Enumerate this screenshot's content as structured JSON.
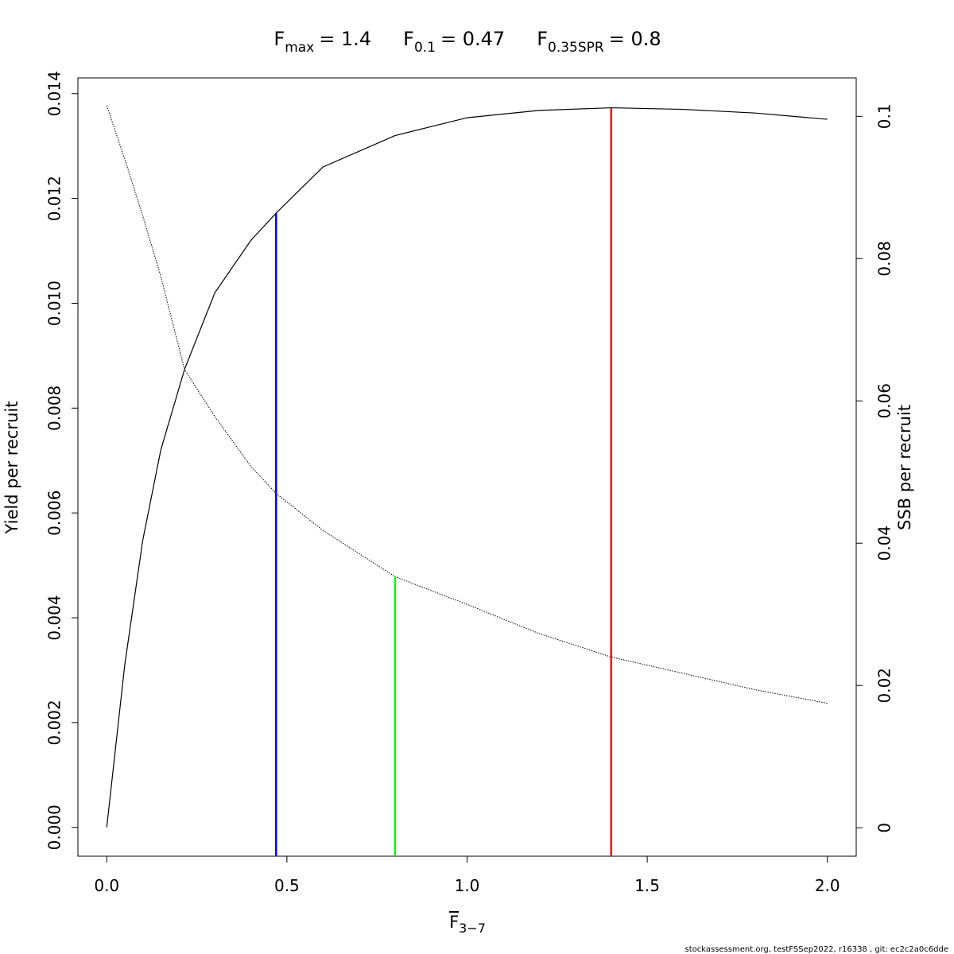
{
  "chart_data": {
    "type": "line",
    "title": [
      {
        "main": "F",
        "sub": "max",
        "rest": "= 1.4"
      },
      {
        "main": "F",
        "sub": "0.1",
        "rest": "= 0.47"
      },
      {
        "main": "F",
        "sub": "0.35SPR",
        "rest": "= 0.8"
      }
    ],
    "xlabel": {
      "main": "F",
      "sub": "3−7"
    },
    "ylabel": "Yield per recruit",
    "y2label": "SSB per recruit",
    "footer": "stockassessment.org, testFSSep2022, r16338 , git: ec2c2a0c6dde",
    "x": [
      0,
      0.05,
      0.1,
      0.15,
      0.216,
      0.3,
      0.4,
      0.47,
      0.6,
      0.8,
      1.0,
      1.2,
      1.4,
      1.6,
      1.8,
      2.0
    ],
    "series": [
      {
        "name": "Yield per recruit",
        "color": "#000000",
        "dash": "solid",
        "axis": "y",
        "values": [
          0,
          0.0031,
          0.00548,
          0.0072,
          0.00874,
          0.0102,
          0.0112,
          0.01172,
          0.0126,
          0.0132,
          0.01354,
          0.01368,
          0.01373,
          0.0137,
          0.01363,
          0.01351
        ]
      },
      {
        "name": "SSB per recruit",
        "color": "#000000",
        "dash": "dotted",
        "axis": "y2",
        "values": [
          0.1015,
          0.094,
          0.086,
          0.0775,
          0.0644,
          0.0578,
          0.0508,
          0.047,
          0.0418,
          0.0353,
          0.0314,
          0.0273,
          0.024,
          0.0217,
          0.0194,
          0.0175
        ]
      }
    ],
    "reference_lines": [
      {
        "x": 0.47,
        "y": 0.01172,
        "axis": "y",
        "color": "#0000ff"
      },
      {
        "x": 0.8,
        "y": 0.0353,
        "axis": "y2",
        "color": "#00ff00"
      },
      {
        "x": 1.4,
        "y": 0.01373,
        "axis": "y",
        "color": "#ff0000"
      }
    ],
    "xlim": [
      -0.08,
      2.08
    ],
    "ylim": [
      -0.00055,
      0.0143
    ],
    "y2lim": [
      -0.004,
      0.1054
    ],
    "xticks": [
      {
        "value": 0,
        "label": "0.0"
      },
      0.5,
      {
        "value": 1,
        "label": "1.0"
      },
      1.5,
      {
        "value": 2,
        "label": "2.0"
      }
    ],
    "yticks": [
      {
        "value": 0,
        "label": "0.000"
      },
      {
        "value": 0.002,
        "label": "0.002"
      },
      {
        "value": 0.004,
        "label": "0.004"
      },
      {
        "value": 0.006,
        "label": "0.006"
      },
      {
        "value": 0.008,
        "label": "0.008"
      },
      {
        "value": 0.01,
        "label": "0.010"
      },
      {
        "value": 0.012,
        "label": "0.012"
      },
      {
        "value": 0.014,
        "label": "0.014"
      }
    ],
    "y2ticks": [
      0,
      0.02,
      0.04,
      0.06,
      0.08,
      0.1
    ]
  }
}
